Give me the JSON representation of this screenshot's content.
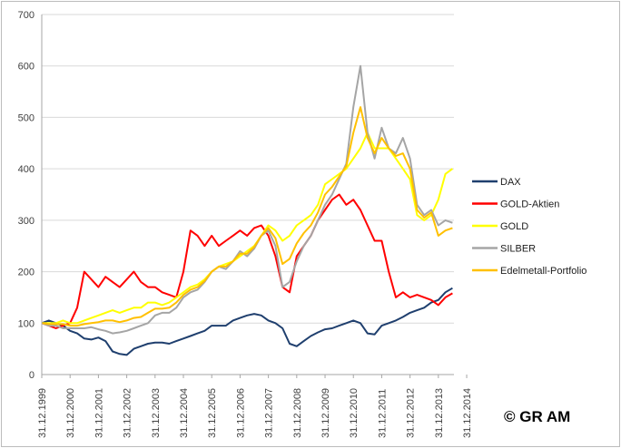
{
  "chart_data": {
    "type": "line",
    "title": "",
    "xlabel": "",
    "ylabel": "",
    "ylim": [
      0,
      700
    ],
    "yticks": [
      0,
      100,
      200,
      300,
      400,
      500,
      600,
      700
    ],
    "xlim": [
      2000.0,
      2014.55
    ],
    "xtick_labels": [
      "31.12.1999",
      "31.12.2000",
      "31.12.2001",
      "31.12.2002",
      "31.12.2003",
      "31.12.2004",
      "31.12.2005",
      "31.12.2006",
      "31.12.2007",
      "31.12.2008",
      "31.12.2009",
      "31.12.2010",
      "31.12.2011",
      "31.12.2012",
      "31.12.2013",
      "31.12.2014"
    ],
    "grid": "horizontal",
    "legend_position": "right",
    "x_step_years": 0.25,
    "x_start": 2000.0,
    "series": [
      {
        "name": "DAX",
        "color": "#1f3f6e",
        "values": [
          100,
          105,
          100,
          95,
          85,
          80,
          70,
          68,
          72,
          65,
          45,
          40,
          38,
          50,
          55,
          60,
          62,
          62,
          60,
          65,
          70,
          75,
          80,
          85,
          95,
          95,
          95,
          105,
          110,
          115,
          118,
          115,
          105,
          100,
          90,
          60,
          55,
          65,
          75,
          82,
          88,
          90,
          95,
          100,
          105,
          100,
          80,
          78,
          95,
          100,
          105,
          112,
          120,
          125,
          130,
          140,
          145,
          160,
          168
        ]
      },
      {
        "name": "GOLD-Aktien",
        "color": "#ff0000",
        "values": [
          100,
          95,
          90,
          95,
          100,
          130,
          200,
          185,
          170,
          190,
          180,
          170,
          185,
          200,
          180,
          170,
          170,
          160,
          155,
          150,
          200,
          280,
          270,
          250,
          270,
          250,
          260,
          270,
          280,
          270,
          285,
          290,
          270,
          230,
          170,
          160,
          230,
          250,
          270,
          300,
          320,
          340,
          350,
          330,
          340,
          320,
          290,
          260,
          260,
          200,
          150,
          160,
          150,
          155,
          150,
          145,
          135,
          150,
          158
        ]
      },
      {
        "name": "GOLD",
        "color": "#ffff00",
        "values": [
          100,
          100,
          100,
          105,
          100,
          100,
          105,
          110,
          115,
          120,
          125,
          120,
          125,
          130,
          130,
          140,
          140,
          135,
          140,
          150,
          160,
          170,
          175,
          185,
          200,
          210,
          215,
          220,
          230,
          240,
          250,
          270,
          290,
          280,
          260,
          270,
          290,
          300,
          310,
          330,
          370,
          380,
          390,
          400,
          420,
          440,
          470,
          440,
          440,
          440,
          420,
          400,
          380,
          310,
          300,
          310,
          340,
          390,
          400
        ]
      },
      {
        "name": "SILBER",
        "color": "#a5a5a5",
        "values": [
          100,
          95,
          95,
          90,
          90,
          90,
          90,
          92,
          88,
          85,
          80,
          82,
          85,
          90,
          95,
          100,
          115,
          120,
          120,
          130,
          150,
          160,
          165,
          180,
          200,
          210,
          205,
          220,
          240,
          230,
          245,
          270,
          280,
          250,
          170,
          180,
          220,
          250,
          270,
          300,
          330,
          350,
          380,
          410,
          520,
          600,
          470,
          420,
          480,
          440,
          430,
          460,
          420,
          330,
          310,
          320,
          290,
          300,
          295
        ]
      },
      {
        "name": "Edelmetall-Portfolio",
        "color": "#ffc000",
        "values": [
          100,
          98,
          98,
          98,
          95,
          95,
          98,
          100,
          102,
          105,
          105,
          102,
          105,
          110,
          112,
          120,
          128,
          128,
          130,
          140,
          155,
          165,
          170,
          182,
          200,
          210,
          210,
          220,
          235,
          235,
          248,
          270,
          285,
          265,
          215,
          225,
          255,
          275,
          290,
          315,
          350,
          365,
          385,
          405,
          470,
          520,
          460,
          430,
          460,
          440,
          425,
          430,
          400,
          320,
          305,
          315,
          270,
          280,
          285
        ]
      }
    ]
  },
  "copyright": "© GR AM"
}
